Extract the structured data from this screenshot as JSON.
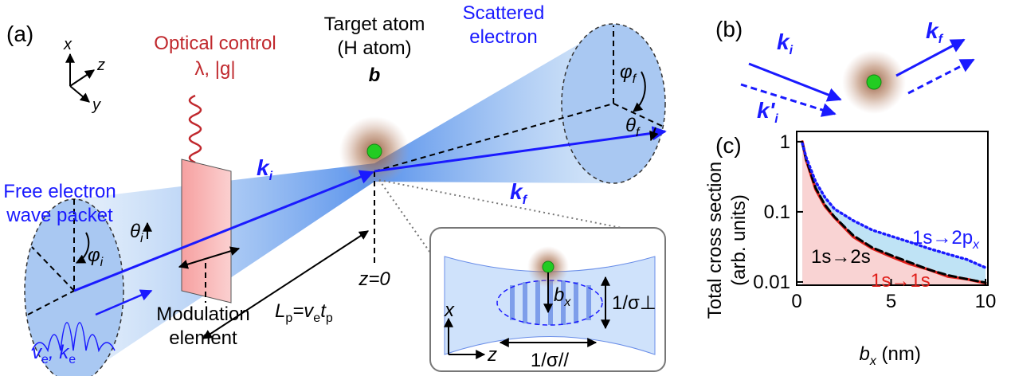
{
  "diagram": {
    "panel_labels": [
      "(a)",
      "(b)",
      "(c)"
    ],
    "axes": [
      "x",
      "z",
      "y"
    ],
    "optical_control": [
      "Optical control",
      "λ, |g|"
    ],
    "target_atom": [
      "Target atom",
      "(H atom)"
    ],
    "b": "b",
    "scattered": [
      "Scattered",
      "electron"
    ],
    "free_electron": [
      "Free electron",
      "wave packet"
    ],
    "modulation": [
      "Modulation",
      "element"
    ],
    "z0": "z=0",
    "lp": {
      "a": "L",
      "a_sub": "p",
      "b": "=v",
      "b_sub": "e",
      "c": "t",
      "c_sub": "p"
    },
    "ve_ke": {
      "a": "v",
      "a_sub": "e",
      "b": ", k",
      "b_sub": "e"
    },
    "k_i": {
      "base": "k",
      "sub": "i"
    },
    "k_f": {
      "base": "k",
      "sub": "f"
    },
    "theta_i": {
      "base": "θ",
      "sub": "i"
    },
    "phi_i": {
      "base": "φ",
      "sub": "i"
    },
    "theta_f": {
      "base": "θ",
      "sub": "f"
    },
    "phi_f": {
      "base": "φ",
      "sub": "f"
    },
    "inset": {
      "b_x": {
        "base": "b",
        "sub": "x"
      },
      "sigma_perp": "1/σ⊥",
      "sigma_par": "1/σ//",
      "x": "x",
      "z": "z"
    },
    "panel_b": {
      "k_i": {
        "base": "k",
        "sub": "i"
      },
      "k_i_prime": {
        "base": "k'",
        "sub": "i"
      },
      "k_f": {
        "base": "k",
        "sub": "f"
      }
    }
  },
  "chart_data": {
    "type": "line",
    "y_label": [
      "Total cross section",
      "(arb. units)"
    ],
    "x_label": {
      "base": "b",
      "sub": "x",
      "rest": " (nm)"
    },
    "x": [
      0.3,
      0.5,
      1,
      1.5,
      2,
      3,
      4,
      5,
      6,
      7,
      8,
      9,
      10
    ],
    "series": [
      {
        "color": "#e0201b",
        "dash": "solid",
        "fill": "#f9d3d3",
        "values": [
          1,
          0.55,
          0.21,
          0.12,
          0.083,
          0.044,
          0.03,
          0.023,
          0.018,
          0.015,
          0.012,
          0.011,
          0.0096
        ]
      },
      {
        "color": "#000000",
        "dash": "dashed",
        "values": [
          0.95,
          0.56,
          0.22,
          0.125,
          0.085,
          0.046,
          0.031,
          0.024,
          0.019,
          0.015,
          0.0125,
          0.011,
          0.0098
        ]
      },
      {
        "color": "#1a1aff",
        "dash": "dotted",
        "fill": "#bfe3f5",
        "values": [
          0.95,
          0.6,
          0.27,
          0.16,
          0.11,
          0.075,
          0.055,
          0.045,
          0.037,
          0.03,
          0.025,
          0.021,
          0.016
        ]
      }
    ],
    "annotations": [
      {
        "text": "1s→2p",
        "sub": "x",
        "color": "#1a1aff"
      },
      {
        "text": "1s→2s",
        "color": "#000000"
      },
      {
        "text": "1s→1s",
        "color": "#e0201b"
      }
    ],
    "xlim": [
      0,
      10
    ],
    "xticks": [
      0,
      5,
      10
    ],
    "ylim": [
      0.009,
      1.4
    ],
    "yticks": [
      1,
      0.1,
      0.01
    ],
    "log_y": true
  }
}
